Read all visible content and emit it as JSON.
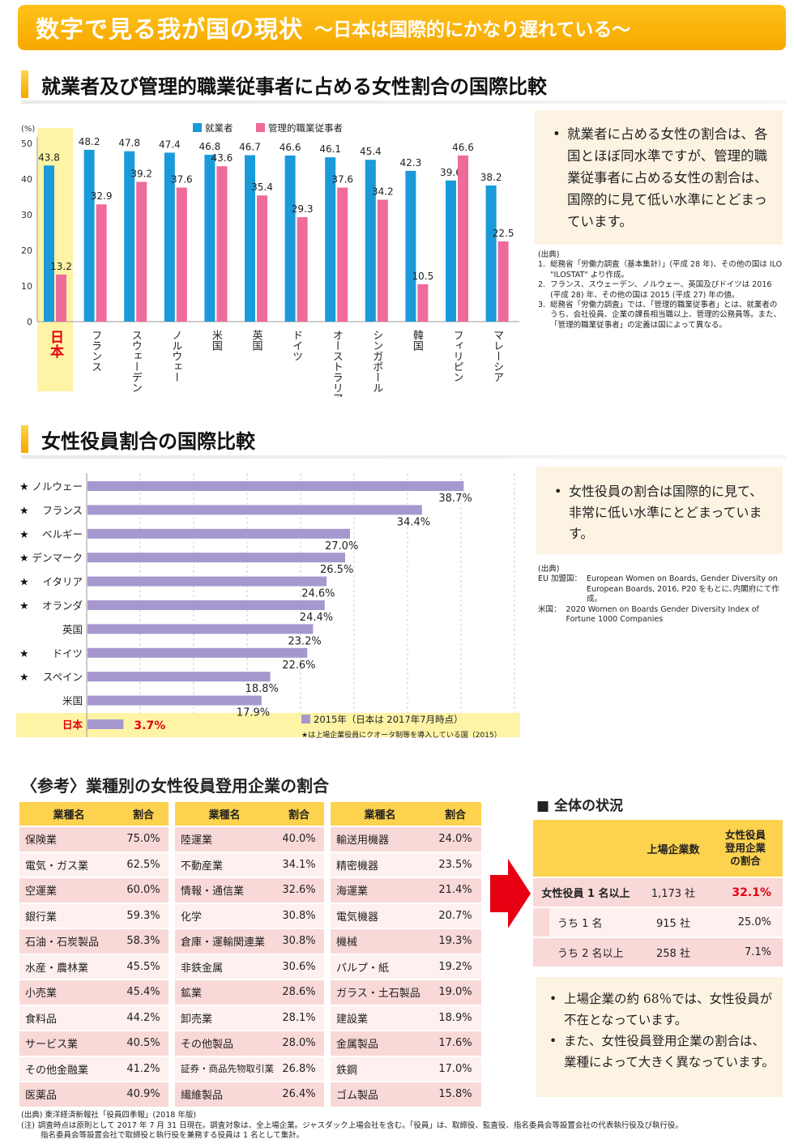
{
  "banner": {
    "title": "数字で見る我が国の現状",
    "subtitle": "～日本は国際的にかなり遅れている～"
  },
  "section1": {
    "title": "就業者及び管理的職業従事者に占める女性割合の国際比較",
    "unit": "(%)",
    "note": "就業者に占める女性の割合は、各国とほぼ同水準ですが、管理的職業従事者に占める女性の割合は、国際的に見て低い水準にとどまっています。",
    "sources_title": "(出典)",
    "sources": [
      {
        "n": "1.",
        "t": "総務省「労働力調査（基本集計）」(平成 28 年)、その他の国は ILO \"ILOSTAT\" より作成。"
      },
      {
        "n": "2.",
        "t": "フランス、スウェーデン、ノルウェー、英国及びドイツは 2016 (平成 28) 年、その他の国は 2015 (平成 27) 年の値。"
      },
      {
        "n": "3.",
        "t": "総務省「労働力調査」では、「管理的職業従事者」とは、就業者のうち、会社役員、企業の課長相当職以上、管理的公務員等。また、「管理的職業従事者」の定義は国によって異なる。"
      }
    ]
  },
  "chart_data": [
    {
      "type": "bar",
      "categories": [
        "日本",
        "フランス",
        "スウェーデン",
        "ノルウェー",
        "米国",
        "英国",
        "ドイツ",
        "オーストラリア",
        "シンガポール",
        "韓国",
        "フィリピン",
        "マレーシア"
      ],
      "series": [
        {
          "name": "就業者",
          "values": [
            43.8,
            48.2,
            47.8,
            47.4,
            46.8,
            46.7,
            46.6,
            46.1,
            45.4,
            42.3,
            39.6,
            38.2
          ]
        },
        {
          "name": "管理的職業従事者",
          "values": [
            13.2,
            32.9,
            39.2,
            37.6,
            43.6,
            35.4,
            29.3,
            37.6,
            34.2,
            10.5,
            46.6,
            22.5
          ]
        }
      ],
      "ylabel": "(%)",
      "ylim": [
        0,
        50
      ],
      "yticks": [
        0,
        10,
        20,
        30,
        40,
        50
      ],
      "legend": "top",
      "highlight": "日本",
      "colors": {
        "employed": "#1a9ad9",
        "managers": "#ee6b9b",
        "highlight_bg": "#fff3a6",
        "japan_label": "#e60012"
      }
    },
    {
      "type": "bar",
      "orientation": "horizontal",
      "categories": [
        "ノルウェー",
        "フランス",
        "ベルギー",
        "デンマーク",
        "イタリア",
        "オランダ",
        "英国",
        "ドイツ",
        "スペイン",
        "米国",
        "日本"
      ],
      "quota": [
        true,
        true,
        true,
        true,
        true,
        true,
        false,
        true,
        true,
        false,
        false
      ],
      "values": [
        38.7,
        34.4,
        27.0,
        26.5,
        24.6,
        24.4,
        23.2,
        22.6,
        18.8,
        17.9,
        3.7
      ],
      "value_labels": [
        "38.7%",
        "34.4%",
        "27.0%",
        "26.5%",
        "24.6%",
        "24.4%",
        "23.2%",
        "22.6%",
        "18.8%",
        "17.9%",
        "3.7%"
      ],
      "xlim": [
        0,
        45
      ],
      "legend": "bottom-right",
      "legend_series": "2015年（日本は 2017年7月時点）",
      "legend_note": "★は上場企業役員にクオータ制等を導入している国（2015）",
      "highlight": "日本",
      "colors": {
        "bar": "#a698cf",
        "highlight_bg": "#fff3a6",
        "japan_label": "#e60012"
      }
    }
  ],
  "section2": {
    "title": "女性役員割合の国際比較",
    "star": "★",
    "note": "女性役員の割合は国際的に見て、非常に低い水準にとどまっています。",
    "sources_title": "(出典)",
    "sources": [
      {
        "n": "EU 加盟国：",
        "t": "European Women on Boards, Gender Diversity on European Boards, 2016, P20 をもとに､内閣府にて作成。"
      },
      {
        "n": "米国：",
        "t": "2020 Women on Boards Gender Diversity Index of Fortune 1000 Companies"
      }
    ]
  },
  "section3": {
    "title": "〈参考〉業種別の女性役員登用企業の割合",
    "col_industry": "業種名",
    "col_ratio": "割合",
    "columns": [
      [
        [
          "保険業",
          "75.0%"
        ],
        [
          "電気・ガス業",
          "62.5%"
        ],
        [
          "空運業",
          "60.0%"
        ],
        [
          "銀行業",
          "59.3%"
        ],
        [
          "石油・石炭製品",
          "58.3%"
        ],
        [
          "水産・農林業",
          "45.5%"
        ],
        [
          "小売業",
          "45.4%"
        ],
        [
          "食料品",
          "44.2%"
        ],
        [
          "サービス業",
          "40.5%"
        ],
        [
          "その他金融業",
          "41.2%"
        ],
        [
          "医薬品",
          "40.9%"
        ]
      ],
      [
        [
          "陸運業",
          "40.0%"
        ],
        [
          "不動産業",
          "34.1%"
        ],
        [
          "情報・通信業",
          "32.6%"
        ],
        [
          "化学",
          "30.8%"
        ],
        [
          "倉庫・運輸関連業",
          "30.8%"
        ],
        [
          "非鉄金属",
          "30.6%"
        ],
        [
          "鉱業",
          "28.6%"
        ],
        [
          "卸売業",
          "28.1%"
        ],
        [
          "その他製品",
          "28.0%"
        ],
        [
          "証券・商品先物取引業",
          "26.8%"
        ],
        [
          "繊維製品",
          "26.4%"
        ]
      ],
      [
        [
          "輸送用機器",
          "24.0%"
        ],
        [
          "精密機器",
          "23.5%"
        ],
        [
          "海運業",
          "21.4%"
        ],
        [
          "電気機器",
          "20.7%"
        ],
        [
          "機械",
          "19.3%"
        ],
        [
          "パルプ・紙",
          "19.2%"
        ],
        [
          "ガラス・土石製品",
          "19.0%"
        ],
        [
          "建設業",
          "18.9%"
        ],
        [
          "金属製品",
          "17.6%"
        ],
        [
          "鉄鋼",
          "17.0%"
        ],
        [
          "ゴム製品",
          "15.8%"
        ]
      ]
    ],
    "source": "(出典) 東洋経済新報社「役員四季報」(2018 年版)",
    "note_label": "(注)",
    "note1": "調査時点は原則として 2017 年 7 月 31 日現在。調査対象は、全上場企業。ジャスダック上場会社を含む。「役員」は、取締役、監査役、指名委員会等設置会社の代表執行役及び執行役。",
    "note2": "指名委員会等設置会社で取締役と執行役を兼務する役員は 1 名として集計。"
  },
  "summary": {
    "title": "■ 全体の状況",
    "col1": "上場企業数",
    "col2": "女性役員\n登用企業\nの割合",
    "rows": [
      {
        "label": "女性役員 1 名以上",
        "count": "1,173 社",
        "ratio": "32.1%"
      },
      {
        "label": "うち 1 名",
        "count": "915 社",
        "ratio": "25.0%"
      },
      {
        "label": "うち 2 名以上",
        "count": "258 社",
        "ratio": "7.1%"
      }
    ],
    "bullets": [
      "上場企業の約 68％では、女性役員が不在となっています。",
      "また、女性役員登用企業の割合は、業種によって大きく異なっています。"
    ]
  }
}
